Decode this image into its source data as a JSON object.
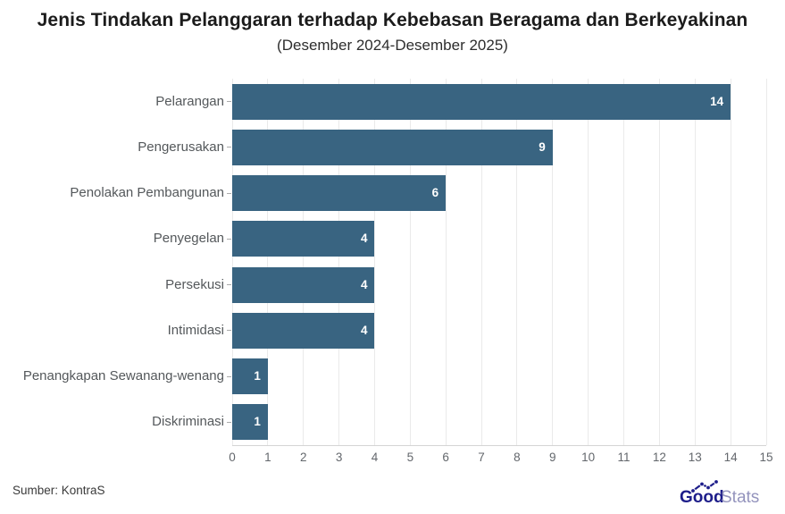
{
  "header": {
    "title": "Jenis Tindakan Pelanggaran terhadap Kebebasan Beragama dan Berkeyakinan",
    "subtitle": "(Desember 2024-Desember 2025)"
  },
  "footer": {
    "source": "Sumber: KontraS",
    "logo": {
      "bold_text": "Good",
      "light_text": "Stats"
    }
  },
  "colors": {
    "bar": "#396481",
    "grid": "#eaeaea",
    "axis": "#d4d4d4",
    "title": "#1b1b1b",
    "subtitle": "#2d2d2d",
    "category_label": "#54585b",
    "tick_label": "#63676c",
    "value_label": "#ffffff",
    "source": "#3a3a3a",
    "logo_navy": "#1d1d8a",
    "logo_light": "#9494bd"
  },
  "chart_data": {
    "type": "bar",
    "orientation": "horizontal",
    "title": "Jenis Tindakan Pelanggaran terhadap Kebebasan Beragama dan Berkeyakinan",
    "subtitle": "(Desember 2024-Desember 2025)",
    "categories": [
      "Pelarangan",
      "Pengerusakan",
      "Penolakan Pembangunan",
      "Penyegelan",
      "Persekusi",
      "Intimidasi",
      "Penangkapan Sewanang-wenang",
      "Diskriminasi"
    ],
    "values": [
      14,
      9,
      6,
      4,
      4,
      4,
      1,
      1
    ],
    "value_labels": [
      "14",
      "9",
      "6",
      "4",
      "4",
      "4",
      "1",
      "1"
    ],
    "xlabel": "",
    "ylabel": "",
    "xlim": [
      0,
      15
    ],
    "xticks": [
      0,
      1,
      2,
      3,
      4,
      5,
      6,
      7,
      8,
      9,
      10,
      11,
      12,
      13,
      14,
      15
    ],
    "grid": true,
    "legend": false,
    "source": "Sumber: KontraS"
  }
}
